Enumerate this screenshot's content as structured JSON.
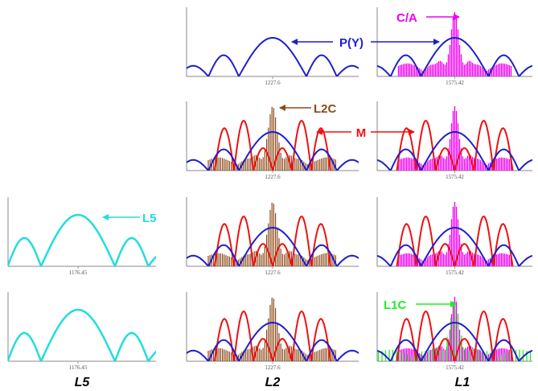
{
  "colors": {
    "p_y": "#1f1fcc",
    "c_a": "#ee00ee",
    "m": "#ee1111",
    "l2c": "#8b4a1a",
    "l5": "#22dddd",
    "l1c": "#22ee22",
    "axis": "#888888",
    "tick": "#999999"
  },
  "columns": [
    {
      "band": "L5",
      "frequency": "1176.45"
    },
    {
      "band": "L2",
      "frequency": "1227.6"
    },
    {
      "band": "L1",
      "frequency": "1575.42"
    }
  ],
  "rows": [
    {
      "L5": [],
      "L2": [
        "P(Y)"
      ],
      "L1": [
        "P(Y)",
        "C/A"
      ]
    },
    {
      "L5": [],
      "L2": [
        "P(Y)",
        "M",
        "L2C"
      ],
      "L1": [
        "P(Y)",
        "M",
        "C/A"
      ]
    },
    {
      "L5": [
        "L5"
      ],
      "L2": [
        "P(Y)",
        "M",
        "L2C"
      ],
      "L1": [
        "P(Y)",
        "M",
        "C/A"
      ]
    },
    {
      "L5": [
        "L5"
      ],
      "L2": [
        "P(Y)",
        "M",
        "L2C"
      ],
      "L1": [
        "P(Y)",
        "M",
        "C/A",
        "L1C"
      ]
    }
  ],
  "annotations": {
    "p_y": "P(Y)",
    "c_a": "C/A",
    "l2c": "L2C",
    "m": "M",
    "l5": "L5",
    "l1c": "L1C"
  },
  "column_labels": {
    "l5": "L5",
    "l2": "L2",
    "l1": "L1"
  }
}
